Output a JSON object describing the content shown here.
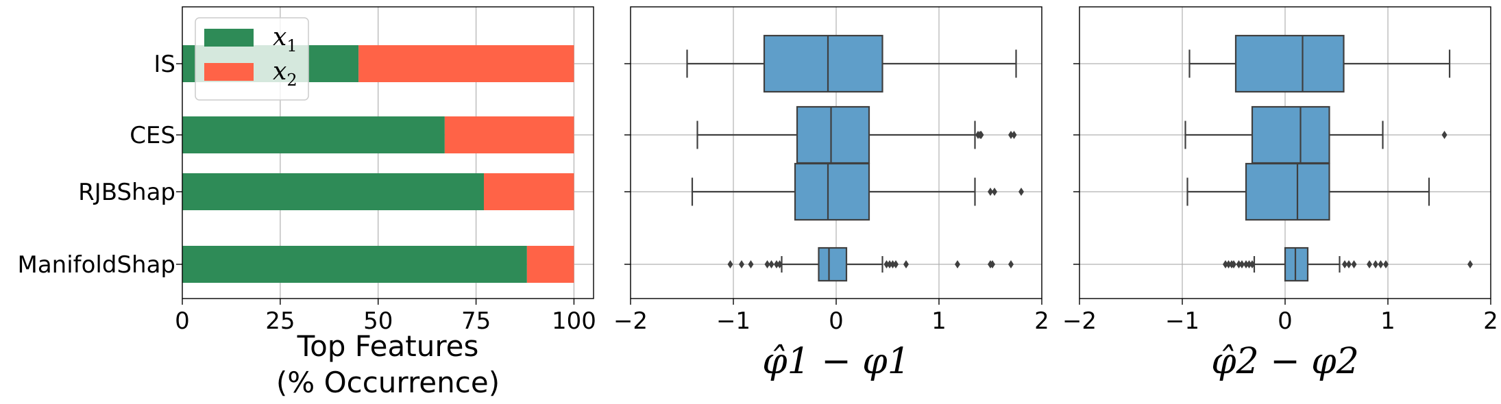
{
  "chart_data": [
    {
      "type": "bar",
      "orientation": "horizontal",
      "stacked": true,
      "categories": [
        "IS",
        "CES",
        "RJBShap",
        "ManifoldShap"
      ],
      "series": [
        {
          "name": "x1",
          "color": "#2e8b57",
          "values": [
            45,
            67,
            77,
            88
          ]
        },
        {
          "name": "x2",
          "color": "#ff6347",
          "values": [
            55,
            33,
            23,
            12
          ]
        }
      ],
      "xticks": [
        "0",
        "25",
        "50",
        "75",
        "100"
      ],
      "xlim": [
        0,
        105
      ],
      "xlabel": "Top Features",
      "xlabel2": "(% Occurrence)",
      "grid": true,
      "legend_position": "upper-left"
    },
    {
      "type": "box",
      "orientation": "horizontal",
      "categories": [
        "IS",
        "CES",
        "RJBShap",
        "ManifoldShap"
      ],
      "xlim": [
        -2,
        2
      ],
      "xticks": [
        "−2",
        "−1",
        "0",
        "1",
        "2"
      ],
      "xlabel": "φ̂1 − φ1",
      "grid": true,
      "box_color": "#5f9ec9",
      "boxes": [
        {
          "whislo": -1.45,
          "q1": -0.7,
          "med": -0.08,
          "q3": 0.45,
          "whishi": 1.75,
          "fliers": []
        },
        {
          "whislo": -1.35,
          "q1": -0.38,
          "med": -0.05,
          "q3": 0.32,
          "whishi": 1.35,
          "fliers": [
            1.38,
            1.4,
            1.41,
            1.7,
            1.73
          ]
        },
        {
          "whislo": -1.4,
          "q1": -0.4,
          "med": -0.08,
          "q3": 0.32,
          "whishi": 1.35,
          "fliers": [
            1.5,
            1.54,
            1.8
          ]
        },
        {
          "whislo": -0.53,
          "q1": -0.17,
          "med": -0.07,
          "q3": 0.1,
          "whishi": 0.45,
          "fliers": [
            -1.03,
            -0.92,
            -0.83,
            -0.67,
            -0.63,
            -0.58,
            -0.55,
            0.49,
            0.52,
            0.55,
            0.58,
            0.68,
            1.18,
            1.5,
            1.52,
            1.7
          ]
        }
      ]
    },
    {
      "type": "box",
      "orientation": "horizontal",
      "categories": [
        "IS",
        "CES",
        "RJBShap",
        "ManifoldShap"
      ],
      "xlim": [
        -2,
        2
      ],
      "xticks": [
        "−2",
        "−1",
        "0",
        "1",
        "2"
      ],
      "xlabel": "φ̂2 − φ2",
      "grid": true,
      "box_color": "#5f9ec9",
      "boxes": [
        {
          "whislo": -0.93,
          "q1": -0.48,
          "med": 0.17,
          "q3": 0.57,
          "whishi": 1.6,
          "fliers": []
        },
        {
          "whislo": -0.97,
          "q1": -0.32,
          "med": 0.15,
          "q3": 0.43,
          "whishi": 0.95,
          "fliers": [
            1.55
          ]
        },
        {
          "whislo": -0.95,
          "q1": -0.38,
          "med": 0.12,
          "q3": 0.43,
          "whishi": 1.4,
          "fliers": []
        },
        {
          "whislo": -0.3,
          "q1": 0.0,
          "med": 0.1,
          "q3": 0.22,
          "whishi": 0.53,
          "fliers": [
            -0.58,
            -0.55,
            -0.52,
            -0.5,
            -0.45,
            -0.42,
            -0.38,
            -0.35,
            -0.32,
            0.58,
            0.62,
            0.67,
            0.82,
            0.88,
            0.93,
            0.98,
            1.8
          ]
        }
      ]
    }
  ]
}
